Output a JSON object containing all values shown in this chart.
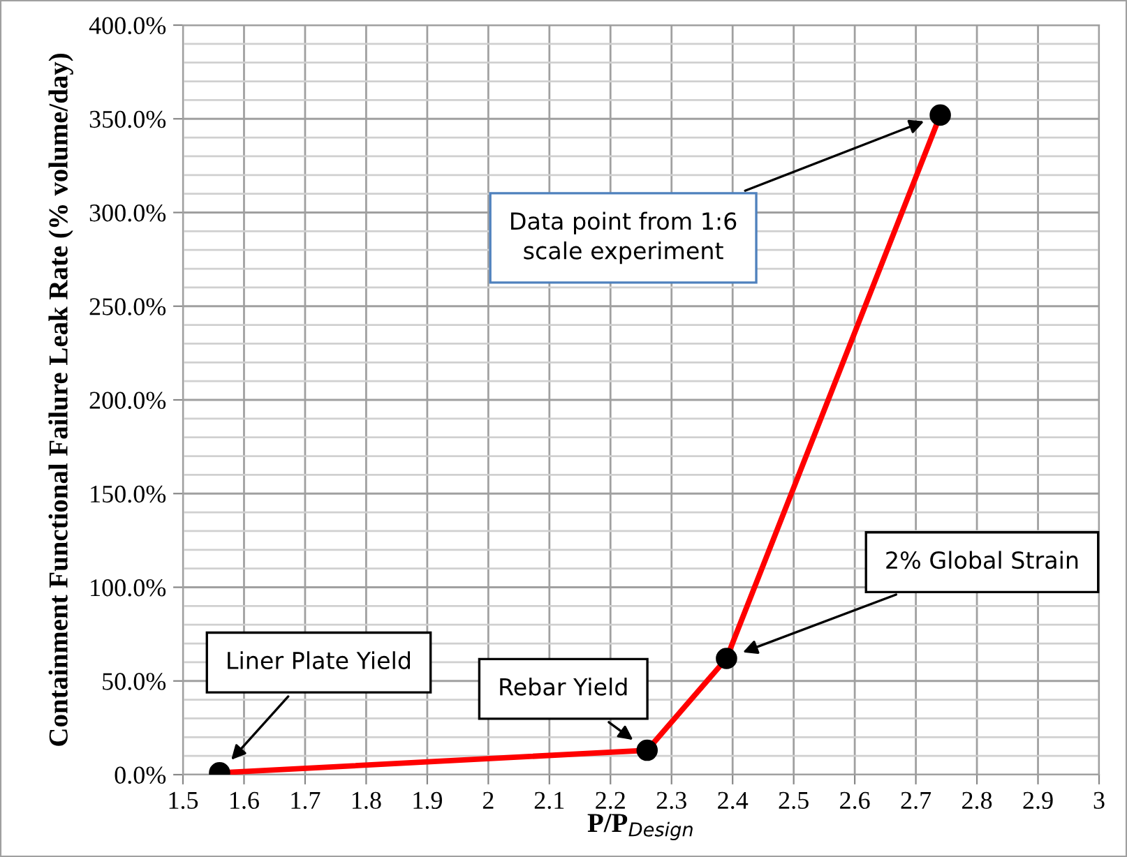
{
  "chart_data": {
    "type": "line",
    "xlabel": "P/P$_{Design}$",
    "ylabel": "Containment Functional Failure Leak Rate (% volume/day)",
    "x": [
      1.56,
      2.26,
      2.39,
      2.74
    ],
    "series": [
      {
        "color": "#ff0000",
        "values": [
          1,
          13,
          62,
          352
        ]
      }
    ],
    "marker": "circle",
    "line_style": "solid",
    "grid": true,
    "xlim": [
      1.5,
      3
    ],
    "xticks": [
      1.5,
      1.6,
      1.7,
      1.8,
      1.9,
      2,
      2.1,
      2.2,
      2.3,
      2.4,
      2.5,
      2.6,
      2.7,
      2.8,
      2.9,
      3
    ],
    "ylim": [
      0,
      400
    ],
    "yticks": [
      {
        "value": 0,
        "label": "0.0%"
      },
      {
        "value": 10,
        "label": null
      },
      {
        "value": 20,
        "label": null
      },
      {
        "value": 30,
        "label": null
      },
      {
        "value": 40,
        "label": null
      },
      {
        "value": 50,
        "label": "50.0%"
      },
      {
        "value": 60,
        "label": null
      },
      {
        "value": 70,
        "label": null
      },
      {
        "value": 80,
        "label": null
      },
      {
        "value": 90,
        "label": null
      },
      {
        "value": 100,
        "label": "100.0%"
      },
      {
        "value": 110,
        "label": null
      },
      {
        "value": 120,
        "label": null
      },
      {
        "value": 130,
        "label": null
      },
      {
        "value": 140,
        "label": null
      },
      {
        "value": 150,
        "label": "150.0%"
      },
      {
        "value": 160,
        "label": null
      },
      {
        "value": 170,
        "label": null
      },
      {
        "value": 180,
        "label": null
      },
      {
        "value": 190,
        "label": null
      },
      {
        "value": 200,
        "label": "200.0%"
      },
      {
        "value": 210,
        "label": null
      },
      {
        "value": 220,
        "label": null
      },
      {
        "value": 230,
        "label": null
      },
      {
        "value": 240,
        "label": null
      },
      {
        "value": 250,
        "label": "250.0%"
      },
      {
        "value": 260,
        "label": null
      },
      {
        "value": 270,
        "label": null
      },
      {
        "value": 280,
        "label": null
      },
      {
        "value": 290,
        "label": null
      },
      {
        "value": 300,
        "label": "300.0%"
      },
      {
        "value": 310,
        "label": null
      },
      {
        "value": 320,
        "label": null
      },
      {
        "value": 330,
        "label": null
      },
      {
        "value": 340,
        "label": null
      },
      {
        "value": 350,
        "label": "350.0%"
      },
      {
        "value": 360,
        "label": null
      },
      {
        "value": 370,
        "label": null
      },
      {
        "value": 380,
        "label": null
      },
      {
        "value": 390,
        "label": null
      },
      {
        "value": 400,
        "label": "400.0%"
      }
    ],
    "annotations": [
      "Liner Plate Yield",
      "Rebar Yield",
      "2% Global Strain",
      "Data point from 1:6\nscale experiment"
    ]
  }
}
